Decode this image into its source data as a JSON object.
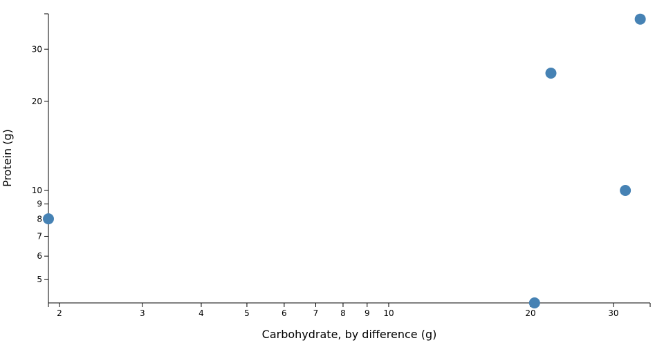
{
  "chart_data": {
    "type": "scatter",
    "log_x": true,
    "log_y": true,
    "x_label": "Carbohydrate, by difference (g)",
    "y_label": "Protein (g)",
    "color": "#4682b4",
    "x": [
      1.895,
      22.1,
      34.2,
      31.8,
      20.4
    ],
    "values": [
      8.02,
      24.9,
      37.9,
      10.0,
      4.17
    ],
    "xlim": [
      1.895,
      35.9
    ],
    "ylim": [
      4.17,
      39.5
    ],
    "xticks": [
      2,
      3,
      4,
      5,
      6,
      7,
      8,
      9,
      10,
      20,
      30
    ],
    "yticks": [
      5,
      6,
      7,
      8,
      9,
      10,
      20,
      30
    ]
  }
}
